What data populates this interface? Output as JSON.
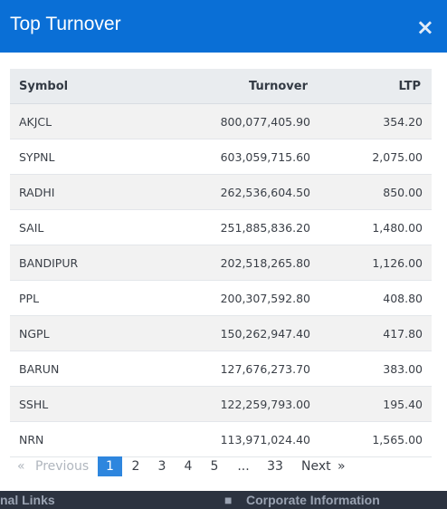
{
  "modal": {
    "title": "Top Turnover",
    "close_glyph": "×"
  },
  "table": {
    "columns": [
      "Symbol",
      "Turnover",
      "LTP"
    ],
    "rows": [
      {
        "symbol": "AKJCL",
        "turnover": "800,077,405.90",
        "ltp": "354.20"
      },
      {
        "symbol": "SYPNL",
        "turnover": "603,059,715.60",
        "ltp": "2,075.00"
      },
      {
        "symbol": "RADHI",
        "turnover": "262,536,604.50",
        "ltp": "850.00"
      },
      {
        "symbol": "SAIL",
        "turnover": "251,885,836.20",
        "ltp": "1,480.00"
      },
      {
        "symbol": "BANDIPUR",
        "turnover": "202,518,265.80",
        "ltp": "1,126.00"
      },
      {
        "symbol": "PPL",
        "turnover": "200,307,592.80",
        "ltp": "408.80"
      },
      {
        "symbol": "NGPL",
        "turnover": "150,262,947.40",
        "ltp": "417.80"
      },
      {
        "symbol": "BARUN",
        "turnover": "127,676,273.70",
        "ltp": "383.00"
      },
      {
        "symbol": "SSHL",
        "turnover": "122,259,793.00",
        "ltp": "195.40"
      },
      {
        "symbol": "NRN",
        "turnover": "113,971,024.40",
        "ltp": "1,565.00"
      }
    ]
  },
  "pagination": {
    "first_glyph": "«",
    "previous_label": "Previous",
    "pages": [
      "1",
      "2",
      "3",
      "4",
      "5",
      "...",
      "33"
    ],
    "current": "1",
    "next_label": "Next",
    "last_glyph": "»"
  },
  "backdrop": {
    "left_text": "nal Links",
    "right_text": "Corporate Information"
  },
  "colors": {
    "header": "#0a6fd6",
    "active_page": "#2e86de",
    "row_alt": "#f2f2f2"
  }
}
